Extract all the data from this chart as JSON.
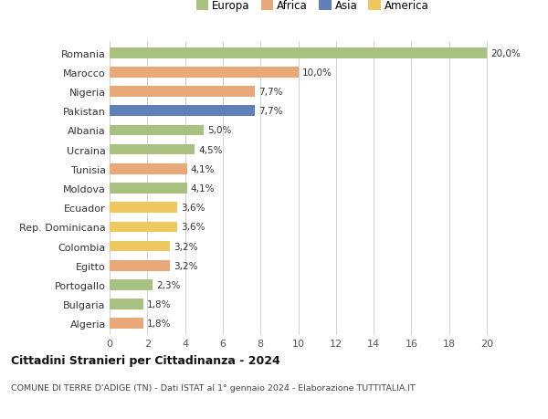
{
  "countries": [
    "Romania",
    "Marocco",
    "Nigeria",
    "Pakistan",
    "Albania",
    "Ucraina",
    "Tunisia",
    "Moldova",
    "Ecuador",
    "Rep. Dominicana",
    "Colombia",
    "Egitto",
    "Portogallo",
    "Bulgaria",
    "Algeria"
  ],
  "values": [
    20.0,
    10.0,
    7.7,
    7.7,
    5.0,
    4.5,
    4.1,
    4.1,
    3.6,
    3.6,
    3.2,
    3.2,
    2.3,
    1.8,
    1.8
  ],
  "labels": [
    "20,0%",
    "10,0%",
    "7,7%",
    "7,7%",
    "5,0%",
    "4,5%",
    "4,1%",
    "4,1%",
    "3,6%",
    "3,6%",
    "3,2%",
    "3,2%",
    "2,3%",
    "1,8%",
    "1,8%"
  ],
  "continents": [
    "Europa",
    "Africa",
    "Africa",
    "Asia",
    "Europa",
    "Europa",
    "Africa",
    "Europa",
    "America",
    "America",
    "America",
    "Africa",
    "Europa",
    "Europa",
    "Africa"
  ],
  "colors": {
    "Europa": "#a8c080",
    "Africa": "#e8a878",
    "Asia": "#6080b8",
    "America": "#f0c860"
  },
  "legend_order": [
    "Europa",
    "Africa",
    "Asia",
    "America"
  ],
  "xlim": [
    0,
    21.5
  ],
  "xticks": [
    0,
    2,
    4,
    6,
    8,
    10,
    12,
    14,
    16,
    18,
    20
  ],
  "title": "Cittadini Stranieri per Cittadinanza - 2024",
  "subtitle": "COMUNE DI TERRE D'ADIGE (TN) - Dati ISTAT al 1° gennaio 2024 - Elaborazione TUTTITALIA.IT",
  "background_color": "#ffffff",
  "grid_color": "#d0d0d0",
  "bar_height": 0.55
}
